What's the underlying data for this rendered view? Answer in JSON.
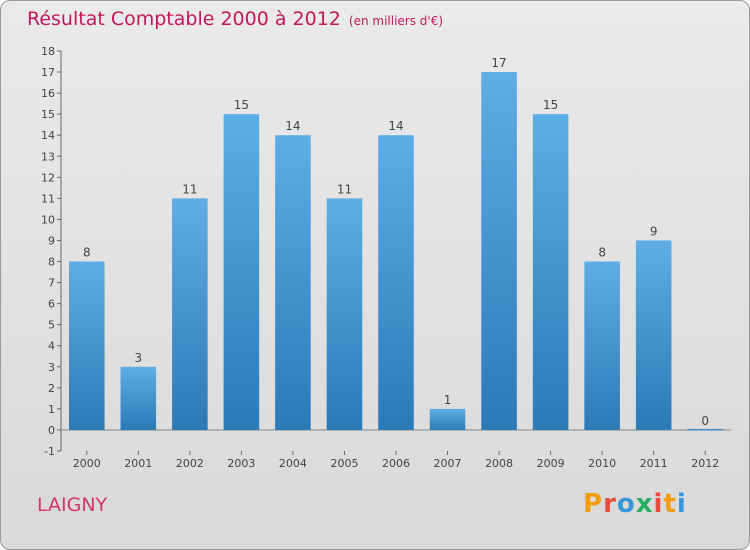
{
  "header": {
    "title": "Résultat Comptable 2000 à 2012",
    "subtitle": "(en milliers d'€)"
  },
  "footer": {
    "commune": "LAIGNY",
    "brand": "Proxiti"
  },
  "colors": {
    "bar_light": "#5dade6",
    "bar_dark": "#2a7ab8",
    "title": "#c2185b"
  },
  "chart_data": {
    "type": "bar",
    "title": "Résultat Comptable 2000 à 2012",
    "unit_label": "(en milliers d'€)",
    "categories": [
      "2000",
      "2001",
      "2002",
      "2003",
      "2004",
      "2005",
      "2006",
      "2007",
      "2008",
      "2009",
      "2010",
      "2011",
      "2012"
    ],
    "values": [
      8,
      3,
      11,
      15,
      14,
      11,
      14,
      1,
      17,
      15,
      8,
      9,
      0
    ],
    "data_labels": [
      "8",
      "3",
      "11",
      "15",
      "14",
      "11",
      "14",
      "1",
      "17",
      "15",
      "8",
      "9",
      "0"
    ],
    "ylim": [
      -1,
      18
    ],
    "yticks": [
      -1,
      0,
      1,
      2,
      3,
      4,
      5,
      6,
      7,
      8,
      9,
      10,
      11,
      12,
      13,
      14,
      15,
      16,
      17,
      18
    ],
    "xlabel": "",
    "ylabel": "",
    "grid": false
  }
}
